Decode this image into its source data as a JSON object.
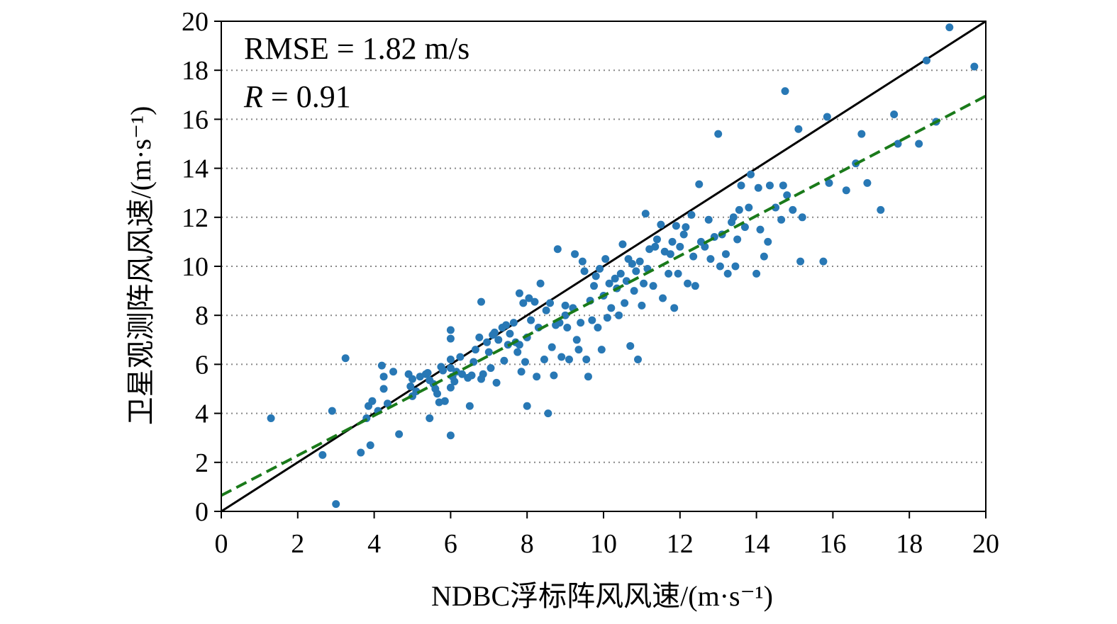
{
  "chart_data": {
    "type": "scatter",
    "xlabel": "NDBC浮标阵风风速/(m·s⁻¹)",
    "ylabel": "卫星观测阵风风速/(m·s⁻¹)",
    "xlim": [
      0,
      20
    ],
    "ylim": [
      0,
      20
    ],
    "xticks": [
      "0",
      "2",
      "4",
      "6",
      "8",
      "10",
      "12",
      "14",
      "16",
      "18",
      "20"
    ],
    "yticks": [
      "0",
      "2",
      "4",
      "6",
      "8",
      "10",
      "12",
      "14",
      "16",
      "18",
      "20"
    ],
    "grid": "horizontal dotted",
    "annotations": {
      "rmse": "RMSE = 1.82 m/s",
      "r_symbol": "R",
      "r_value": " = 0.91"
    },
    "reference_line": {
      "style": "solid",
      "color": "#000000",
      "points": [
        [
          0,
          0
        ],
        [
          20,
          20
        ]
      ]
    },
    "fit_line": {
      "style": "dashed",
      "color": "#1a7a1a",
      "points": [
        [
          0,
          0.65
        ],
        [
          20,
          16.95
        ]
      ]
    },
    "series": [
      {
        "color": "#2878b5",
        "points": [
          [
            1.3,
            3.8
          ],
          [
            2.65,
            2.3
          ],
          [
            2.9,
            4.1
          ],
          [
            3.0,
            0.3
          ],
          [
            3.25,
            6.25
          ],
          [
            3.65,
            2.4
          ],
          [
            3.8,
            3.8
          ],
          [
            3.85,
            4.3
          ],
          [
            3.9,
            2.7
          ],
          [
            3.95,
            4.5
          ],
          [
            4.1,
            4.1
          ],
          [
            4.2,
            5.95
          ],
          [
            4.25,
            5.5
          ],
          [
            4.25,
            5.0
          ],
          [
            4.35,
            4.4
          ],
          [
            4.5,
            5.7
          ],
          [
            4.65,
            3.15
          ],
          [
            4.9,
            5.6
          ],
          [
            4.95,
            5.1
          ],
          [
            5.0,
            5.4
          ],
          [
            5.0,
            4.7
          ],
          [
            5.1,
            4.9
          ],
          [
            5.2,
            5.5
          ],
          [
            5.35,
            5.6
          ],
          [
            5.4,
            5.65
          ],
          [
            5.45,
            5.35
          ],
          [
            5.45,
            3.8
          ],
          [
            5.55,
            5.2
          ],
          [
            5.6,
            5.0
          ],
          [
            5.65,
            4.8
          ],
          [
            5.7,
            4.45
          ],
          [
            5.75,
            5.9
          ],
          [
            5.8,
            5.75
          ],
          [
            5.85,
            4.5
          ],
          [
            6.0,
            7.4
          ],
          [
            6.0,
            7.05
          ],
          [
            6.0,
            6.2
          ],
          [
            6.0,
            5.85
          ],
          [
            6.05,
            5.5
          ],
          [
            6.1,
            5.3
          ],
          [
            6.0,
            5.05
          ],
          [
            6.0,
            3.1
          ],
          [
            6.15,
            5.7
          ],
          [
            6.25,
            6.3
          ],
          [
            6.3,
            5.6
          ],
          [
            6.45,
            5.45
          ],
          [
            6.5,
            4.3
          ],
          [
            6.55,
            5.55
          ],
          [
            6.6,
            6.1
          ],
          [
            6.65,
            6.6
          ],
          [
            6.75,
            7.1
          ],
          [
            6.8,
            8.55
          ],
          [
            6.8,
            5.4
          ],
          [
            6.85,
            5.6
          ],
          [
            6.95,
            6.9
          ],
          [
            7.0,
            6.5
          ],
          [
            7.05,
            5.85
          ],
          [
            7.1,
            7.2
          ],
          [
            7.15,
            7.3
          ],
          [
            7.2,
            5.25
          ],
          [
            7.25,
            7.0
          ],
          [
            7.35,
            7.5
          ],
          [
            7.4,
            6.15
          ],
          [
            7.45,
            7.6
          ],
          [
            7.5,
            6.8
          ],
          [
            7.55,
            7.25
          ],
          [
            7.65,
            7.7
          ],
          [
            7.7,
            6.9
          ],
          [
            7.75,
            6.5
          ],
          [
            7.8,
            8.9
          ],
          [
            7.8,
            6.8
          ],
          [
            7.85,
            5.7
          ],
          [
            7.9,
            8.5
          ],
          [
            7.95,
            6.1
          ],
          [
            8.0,
            7.1
          ],
          [
            8.0,
            4.3
          ],
          [
            8.05,
            8.7
          ],
          [
            8.1,
            7.8
          ],
          [
            8.2,
            8.55
          ],
          [
            8.25,
            5.5
          ],
          [
            8.3,
            7.5
          ],
          [
            8.35,
            9.3
          ],
          [
            8.45,
            6.2
          ],
          [
            8.5,
            8.2
          ],
          [
            8.55,
            4.0
          ],
          [
            8.6,
            8.5
          ],
          [
            8.65,
            6.7
          ],
          [
            8.7,
            5.55
          ],
          [
            8.75,
            7.6
          ],
          [
            8.8,
            10.7
          ],
          [
            8.85,
            7.7
          ],
          [
            8.9,
            6.3
          ],
          [
            9.0,
            8.0
          ],
          [
            9.0,
            8.4
          ],
          [
            9.05,
            7.5
          ],
          [
            9.1,
            6.2
          ],
          [
            9.2,
            8.3
          ],
          [
            9.25,
            10.5
          ],
          [
            9.3,
            7.0
          ],
          [
            9.35,
            6.6
          ],
          [
            9.4,
            7.7
          ],
          [
            9.45,
            10.2
          ],
          [
            9.5,
            9.8
          ],
          [
            9.55,
            6.2
          ],
          [
            9.6,
            5.5
          ],
          [
            9.65,
            8.6
          ],
          [
            9.7,
            7.8
          ],
          [
            9.75,
            9.2
          ],
          [
            9.8,
            9.6
          ],
          [
            9.85,
            7.5
          ],
          [
            9.9,
            9.9
          ],
          [
            9.95,
            6.6
          ],
          [
            10.0,
            8.8
          ],
          [
            10.05,
            10.3
          ],
          [
            10.1,
            7.9
          ],
          [
            10.15,
            9.3
          ],
          [
            10.2,
            8.3
          ],
          [
            10.3,
            9.5
          ],
          [
            10.35,
            9.1
          ],
          [
            10.4,
            8.0
          ],
          [
            10.45,
            9.7
          ],
          [
            10.5,
            10.9
          ],
          [
            10.55,
            8.5
          ],
          [
            10.6,
            9.4
          ],
          [
            10.65,
            10.3
          ],
          [
            10.7,
            6.75
          ],
          [
            10.75,
            10.1
          ],
          [
            10.8,
            9.0
          ],
          [
            10.85,
            9.8
          ],
          [
            10.9,
            6.2
          ],
          [
            10.95,
            10.2
          ],
          [
            11.0,
            8.4
          ],
          [
            11.05,
            9.3
          ],
          [
            11.1,
            12.15
          ],
          [
            11.15,
            9.9
          ],
          [
            11.2,
            10.7
          ],
          [
            11.3,
            9.2
          ],
          [
            11.35,
            10.8
          ],
          [
            11.4,
            11.1
          ],
          [
            11.5,
            11.7
          ],
          [
            11.55,
            8.7
          ],
          [
            11.6,
            10.6
          ],
          [
            11.7,
            9.7
          ],
          [
            11.75,
            10.5
          ],
          [
            11.8,
            11.0
          ],
          [
            11.85,
            8.3
          ],
          [
            11.9,
            11.65
          ],
          [
            11.95,
            9.7
          ],
          [
            12.0,
            10.8
          ],
          [
            12.1,
            11.3
          ],
          [
            12.15,
            11.6
          ],
          [
            12.2,
            9.3
          ],
          [
            12.3,
            12.1
          ],
          [
            12.35,
            10.4
          ],
          [
            12.4,
            9.2
          ],
          [
            12.5,
            13.35
          ],
          [
            12.55,
            11.0
          ],
          [
            12.65,
            10.8
          ],
          [
            12.75,
            11.9
          ],
          [
            12.8,
            10.3
          ],
          [
            12.9,
            11.2
          ],
          [
            13.0,
            15.4
          ],
          [
            13.05,
            10.0
          ],
          [
            13.1,
            11.3
          ],
          [
            13.2,
            10.5
          ],
          [
            13.25,
            9.7
          ],
          [
            13.35,
            11.8
          ],
          [
            13.4,
            12.0
          ],
          [
            13.45,
            10.0
          ],
          [
            13.5,
            11.1
          ],
          [
            13.55,
            12.3
          ],
          [
            13.6,
            13.3
          ],
          [
            13.7,
            11.6
          ],
          [
            13.8,
            12.4
          ],
          [
            13.85,
            13.75
          ],
          [
            14.0,
            9.7
          ],
          [
            14.05,
            13.2
          ],
          [
            14.1,
            11.5
          ],
          [
            14.2,
            10.4
          ],
          [
            14.3,
            11.0
          ],
          [
            14.35,
            13.3
          ],
          [
            14.5,
            12.4
          ],
          [
            14.65,
            11.9
          ],
          [
            14.7,
            13.3
          ],
          [
            14.75,
            17.15
          ],
          [
            14.8,
            12.9
          ],
          [
            14.95,
            12.3
          ],
          [
            15.1,
            15.6
          ],
          [
            15.15,
            10.2
          ],
          [
            15.2,
            12.0
          ],
          [
            15.75,
            10.2
          ],
          [
            15.85,
            16.1
          ],
          [
            15.9,
            13.4
          ],
          [
            16.35,
            13.1
          ],
          [
            16.6,
            14.2
          ],
          [
            16.75,
            15.4
          ],
          [
            16.9,
            13.4
          ],
          [
            17.25,
            12.3
          ],
          [
            17.6,
            16.2
          ],
          [
            17.7,
            15.0
          ],
          [
            18.25,
            15.0
          ],
          [
            18.45,
            18.4
          ],
          [
            18.7,
            15.9
          ],
          [
            19.05,
            19.75
          ],
          [
            19.7,
            18.15
          ]
        ]
      }
    ]
  }
}
